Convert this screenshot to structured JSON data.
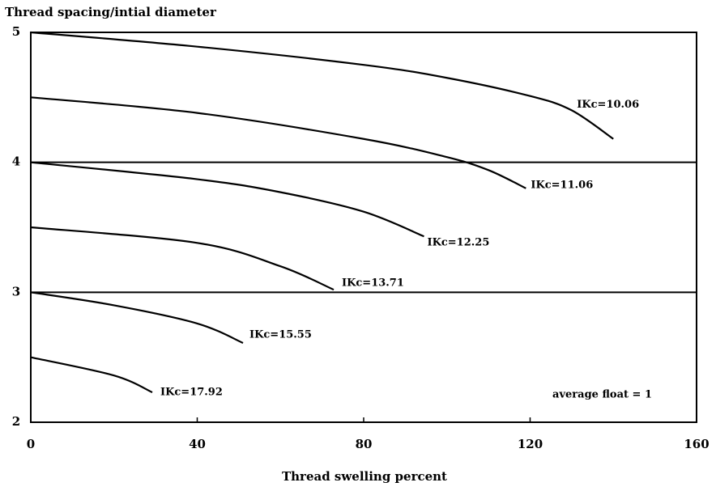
{
  "chart_data": {
    "type": "line",
    "title": "Thread spacing/intial diameter",
    "xlabel": "Thread swelling percent",
    "annotation": "average float = 1",
    "xlim": [
      0,
      160
    ],
    "xticks": [
      0,
      40,
      80,
      120,
      160
    ],
    "ylim": [
      2,
      5
    ],
    "yticks": [
      2,
      3,
      4,
      5
    ],
    "grid": true,
    "series": [
      {
        "name": "IKc=10.06",
        "color": "#000000",
        "x": [
          0,
          40,
          80,
          100,
          120,
          130,
          140
        ],
        "values": [
          5,
          4.89,
          4.75,
          4.65,
          4.51,
          4.4,
          4.18
        ]
      },
      {
        "name": "IKc=11.06",
        "color": "#000000",
        "x": [
          0,
          40,
          80,
          100,
          110,
          119
        ],
        "values": [
          4.5,
          4.38,
          4.18,
          4.04,
          3.94,
          3.8
        ]
      },
      {
        "name": "IKc=12.25",
        "color": "#000000",
        "x": [
          0,
          40,
          60,
          80,
          94.5
        ],
        "values": [
          4,
          3.87,
          3.77,
          3.62,
          3.43
        ]
      },
      {
        "name": "IKc=13.71",
        "color": "#000000",
        "x": [
          0,
          40,
          60,
          72.8
        ],
        "values": [
          3.5,
          3.38,
          3.2,
          3.02
        ]
      },
      {
        "name": "IKc=15.55",
        "color": "#000000",
        "x": [
          0,
          20,
          40,
          51
        ],
        "values": [
          3,
          2.9,
          2.76,
          2.61
        ]
      },
      {
        "name": "IKc=17.92",
        "color": "#000000",
        "x": [
          0,
          20,
          29.2
        ],
        "values": [
          2.5,
          2.36,
          2.23
        ]
      }
    ]
  }
}
